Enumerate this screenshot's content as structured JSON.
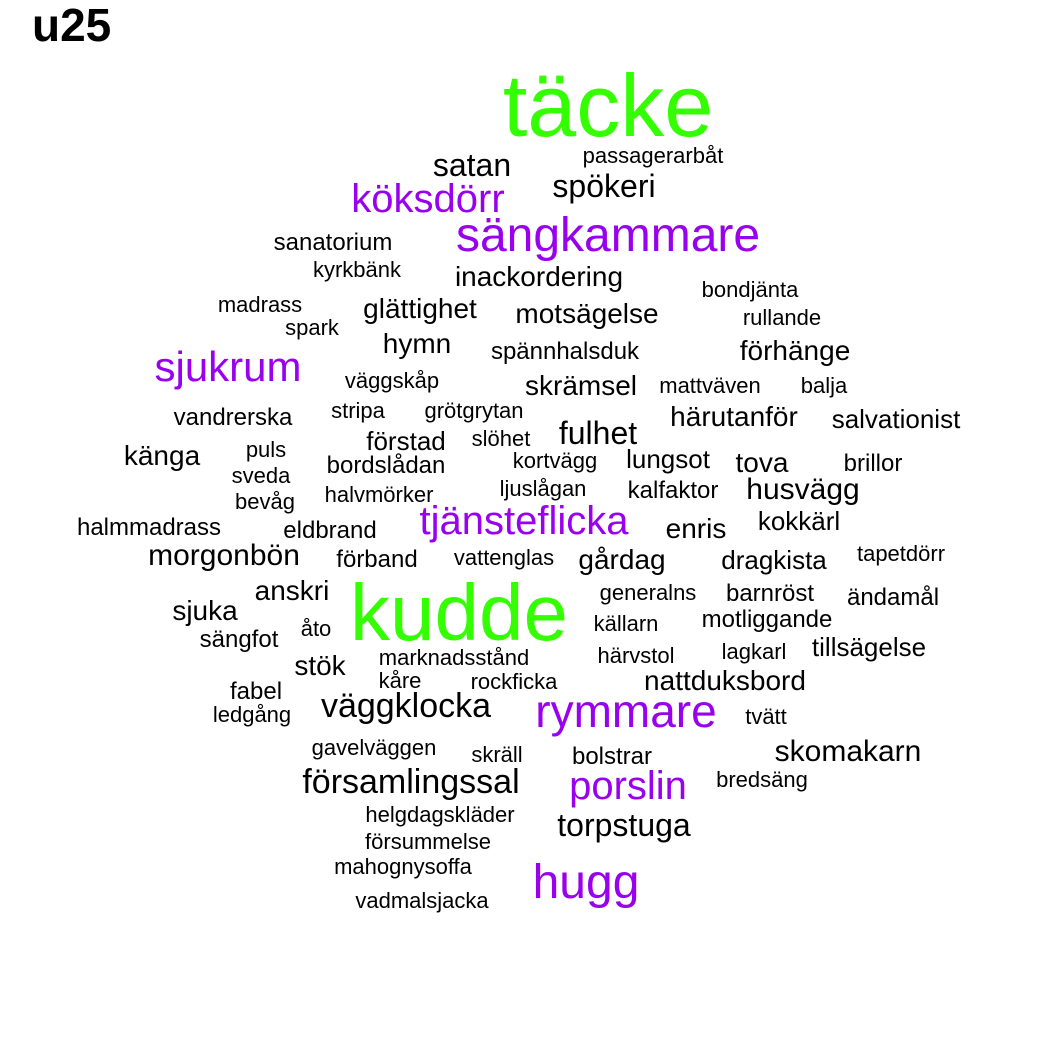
{
  "title": "u25",
  "colors": {
    "large": "#33ff00",
    "medium": "#9900ee",
    "small": "#000000"
  },
  "words": [
    {
      "text": "täcke",
      "tier": "large"
    },
    {
      "text": "kudde",
      "tier": "large"
    },
    {
      "text": "sängkammare",
      "tier": "medium"
    },
    {
      "text": "köksdörr",
      "tier": "medium"
    },
    {
      "text": "sjukrum",
      "tier": "medium"
    },
    {
      "text": "tjänsteflicka",
      "tier": "medium"
    },
    {
      "text": "rymmare",
      "tier": "medium"
    },
    {
      "text": "porslin",
      "tier": "medium"
    },
    {
      "text": "hugg",
      "tier": "medium"
    },
    {
      "text": "satan",
      "tier": "small"
    },
    {
      "text": "passagerarbåt",
      "tier": "small"
    },
    {
      "text": "spökeri",
      "tier": "small"
    },
    {
      "text": "sanatorium",
      "tier": "small"
    },
    {
      "text": "kyrkbänk",
      "tier": "small"
    },
    {
      "text": "inackordering",
      "tier": "small"
    },
    {
      "text": "bondjänta",
      "tier": "small"
    },
    {
      "text": "madrass",
      "tier": "small"
    },
    {
      "text": "glättighet",
      "tier": "small"
    },
    {
      "text": "motsägelse",
      "tier": "small"
    },
    {
      "text": "rullande",
      "tier": "small"
    },
    {
      "text": "spark",
      "tier": "small"
    },
    {
      "text": "hymn",
      "tier": "small"
    },
    {
      "text": "spännhalsduk",
      "tier": "small"
    },
    {
      "text": "förhänge",
      "tier": "small"
    },
    {
      "text": "väggskåp",
      "tier": "small"
    },
    {
      "text": "skrämsel",
      "tier": "small"
    },
    {
      "text": "mattväven",
      "tier": "small"
    },
    {
      "text": "balja",
      "tier": "small"
    },
    {
      "text": "vandrerska",
      "tier": "small"
    },
    {
      "text": "stripa",
      "tier": "small"
    },
    {
      "text": "grötgrytan",
      "tier": "small"
    },
    {
      "text": "härutanför",
      "tier": "small"
    },
    {
      "text": "salvationist",
      "tier": "small"
    },
    {
      "text": "förstad",
      "tier": "small"
    },
    {
      "text": "slöhet",
      "tier": "small"
    },
    {
      "text": "fulhet",
      "tier": "small"
    },
    {
      "text": "känga",
      "tier": "small"
    },
    {
      "text": "puls",
      "tier": "small"
    },
    {
      "text": "bordslådan",
      "tier": "small"
    },
    {
      "text": "kortvägg",
      "tier": "small"
    },
    {
      "text": "lungsot",
      "tier": "small"
    },
    {
      "text": "tova",
      "tier": "small"
    },
    {
      "text": "brillor",
      "tier": "small"
    },
    {
      "text": "sveda",
      "tier": "small"
    },
    {
      "text": "ljuslågan",
      "tier": "small"
    },
    {
      "text": "kalfaktor",
      "tier": "small"
    },
    {
      "text": "husvägg",
      "tier": "small"
    },
    {
      "text": "bevåg",
      "tier": "small"
    },
    {
      "text": "halvmörker",
      "tier": "small"
    },
    {
      "text": "halmmadrass",
      "tier": "small"
    },
    {
      "text": "eldbrand",
      "tier": "small"
    },
    {
      "text": "enris",
      "tier": "small"
    },
    {
      "text": "kokkärl",
      "tier": "small"
    },
    {
      "text": "morgonbön",
      "tier": "small"
    },
    {
      "text": "förband",
      "tier": "small"
    },
    {
      "text": "vattenglas",
      "tier": "small"
    },
    {
      "text": "gårdag",
      "tier": "small"
    },
    {
      "text": "dragkista",
      "tier": "small"
    },
    {
      "text": "tapetdörr",
      "tier": "small"
    },
    {
      "text": "anskri",
      "tier": "small"
    },
    {
      "text": "generalns",
      "tier": "small"
    },
    {
      "text": "barnröst",
      "tier": "small"
    },
    {
      "text": "ändamål",
      "tier": "small"
    },
    {
      "text": "sjuka",
      "tier": "small"
    },
    {
      "text": "källarn",
      "tier": "small"
    },
    {
      "text": "motliggande",
      "tier": "small"
    },
    {
      "text": "sängfot",
      "tier": "small"
    },
    {
      "text": "åto",
      "tier": "small"
    },
    {
      "text": "tillsägelse",
      "tier": "small"
    },
    {
      "text": "stök",
      "tier": "small"
    },
    {
      "text": "marknadsstånd",
      "tier": "small"
    },
    {
      "text": "härvstol",
      "tier": "small"
    },
    {
      "text": "lagkarl",
      "tier": "small"
    },
    {
      "text": "fabel",
      "tier": "small"
    },
    {
      "text": "kåre",
      "tier": "small"
    },
    {
      "text": "rockficka",
      "tier": "small"
    },
    {
      "text": "nattduksbord",
      "tier": "small"
    },
    {
      "text": "ledgång",
      "tier": "small"
    },
    {
      "text": "väggklocka",
      "tier": "small"
    },
    {
      "text": "tvätt",
      "tier": "small"
    },
    {
      "text": "gavelväggen",
      "tier": "small"
    },
    {
      "text": "skräll",
      "tier": "small"
    },
    {
      "text": "bolstrar",
      "tier": "small"
    },
    {
      "text": "skomakarn",
      "tier": "small"
    },
    {
      "text": "församlingssal",
      "tier": "small"
    },
    {
      "text": "bredsäng",
      "tier": "small"
    },
    {
      "text": "helgdagskläder",
      "tier": "small"
    },
    {
      "text": "torpstuga",
      "tier": "small"
    },
    {
      "text": "försummelse",
      "tier": "small"
    },
    {
      "text": "mahognysoffa",
      "tier": "small"
    },
    {
      "text": "vadmalsjacka",
      "tier": "small"
    }
  ]
}
